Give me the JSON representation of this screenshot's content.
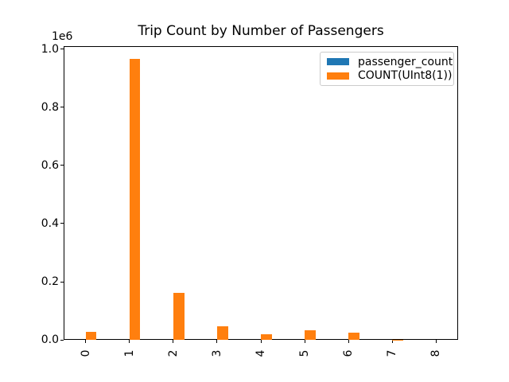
{
  "chart_data": {
    "type": "bar",
    "title": "Trip Count by Number of Passengers",
    "offset_label": "1e6",
    "categories": [
      "0",
      "1",
      "2",
      "3",
      "4",
      "5",
      "6",
      "7",
      "8"
    ],
    "series": [
      {
        "name": "passenger_count",
        "color": "#1f77b4",
        "values": [
          0,
          1,
          2,
          3,
          4,
          5,
          6,
          7,
          8
        ]
      },
      {
        "name": "COUNT(UInt8(1))",
        "color": "#ff7f0e",
        "values": [
          27000,
          965000,
          163000,
          46500,
          19000,
          33000,
          26000,
          300,
          100
        ]
      }
    ],
    "xlabel": "",
    "ylabel": "",
    "ylim": [
      0,
      1011000
    ],
    "yticks": [
      0,
      200000,
      400000,
      600000,
      800000,
      1000000
    ],
    "ytick_labels": [
      "0.0",
      "0.2",
      "0.4",
      "0.6",
      "0.8",
      "1.0"
    ],
    "xtick_rotation": 90,
    "legend_position": "upper right",
    "grid": false,
    "background": "#ffffff",
    "text_color": "#000000"
  }
}
